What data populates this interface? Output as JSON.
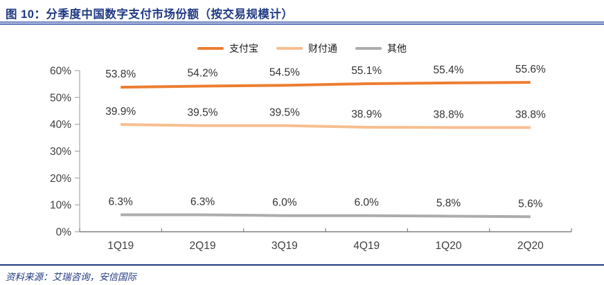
{
  "title": {
    "label": "图 10：分季度中国数字支付市场份额（按交易规模计）"
  },
  "footer": {
    "source_label": "资料来源：艾瑞咨询，安信国际"
  },
  "colors": {
    "accent_navy": "#203982",
    "underline_blue": "#9AA9D4",
    "axis_gray": "#808080",
    "y_axis_gray": "#A6A6A6",
    "tick_label_gray": "#404040",
    "data_label_dark": "#333333"
  },
  "chart_data": {
    "type": "line",
    "title": "分季度中国数字支付市场份额（按交易规模计）",
    "categories": [
      "1Q19",
      "2Q19",
      "3Q19",
      "4Q19",
      "1Q20",
      "2Q20"
    ],
    "series": [
      {
        "name": "支付宝",
        "slug": "alipay",
        "color": "#ED7D31",
        "values": [
          53.8,
          54.2,
          54.5,
          55.1,
          55.4,
          55.6
        ]
      },
      {
        "name": "财付通",
        "slug": "tenpay",
        "color": "#F8BE8F",
        "values": [
          39.9,
          39.5,
          39.5,
          38.9,
          38.8,
          38.8
        ]
      },
      {
        "name": "其他",
        "slug": "other",
        "color": "#ACACAC",
        "values": [
          6.3,
          6.3,
          6.0,
          6.0,
          5.8,
          5.6
        ]
      }
    ],
    "ylim": [
      0,
      60
    ],
    "ytick_step": 10,
    "ytick_labels": [
      "0%",
      "10%",
      "20%",
      "30%",
      "40%",
      "50%",
      "60%"
    ],
    "data_labels": true,
    "data_label_format": "one_decimal_percent",
    "legend_position": "top-center",
    "grid": false
  }
}
